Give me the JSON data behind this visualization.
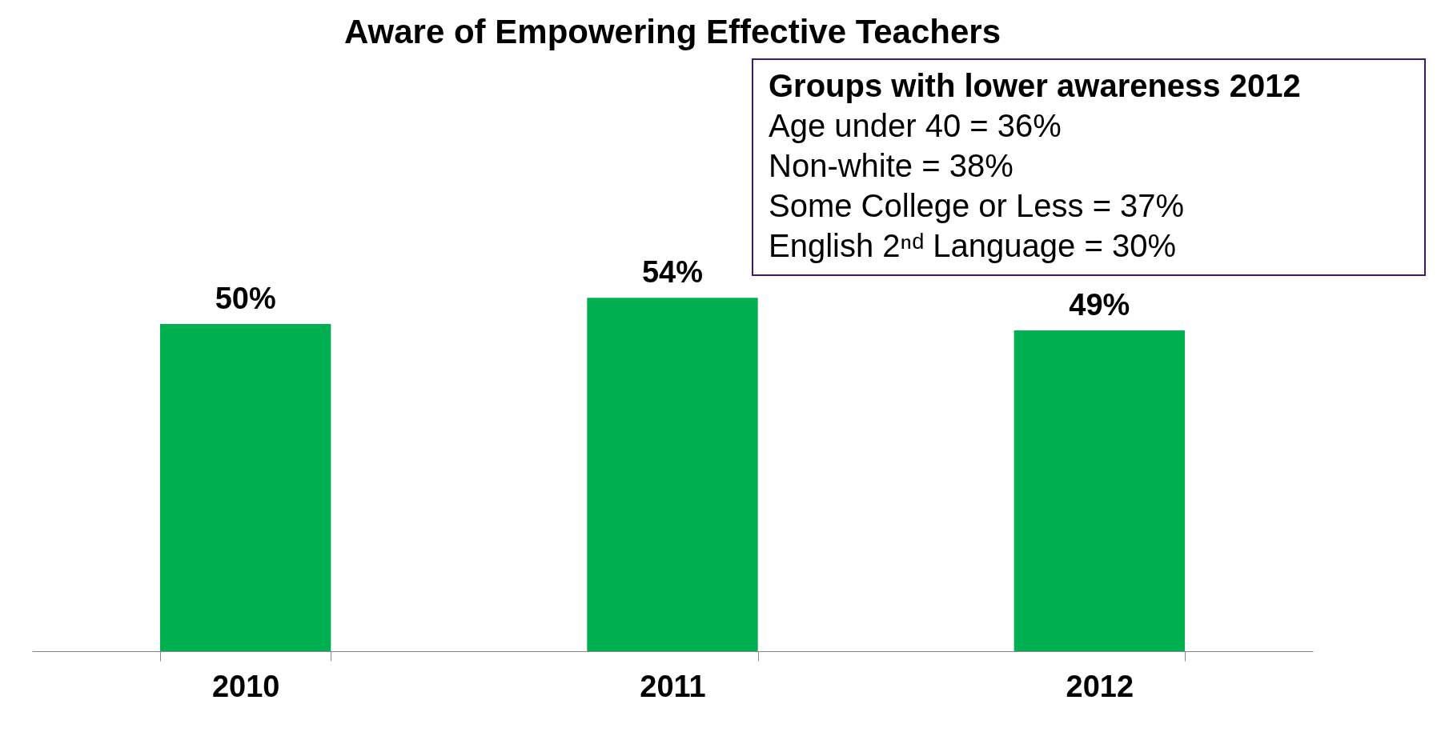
{
  "chart_data": {
    "type": "bar",
    "title": "Aware of Empowering Effective Teachers",
    "categories": [
      "2010",
      "2011",
      "2012"
    ],
    "values": [
      50,
      54,
      49
    ],
    "color": "#00b050",
    "value_labels": [
      "50%",
      "54%",
      "49%"
    ],
    "annotations": [
      "Groups with lower awareness 2012",
      "Age under 40 = 36%",
      "Non-white = 38%",
      "Some College or Less = 37%",
      "English 2ⁿᵈ Language = 30%"
    ]
  }
}
